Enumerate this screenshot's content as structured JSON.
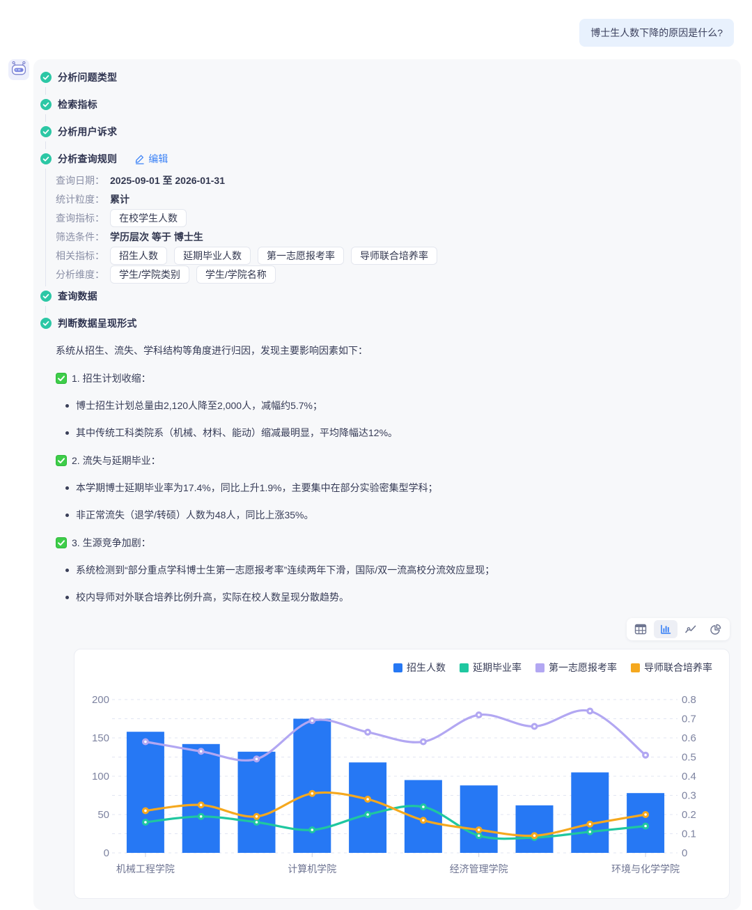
{
  "user_message": "博士生人数下降的原因是什么?",
  "avatar": {
    "icon": "robot-icon"
  },
  "steps": [
    {
      "label": "分析问题类型"
    },
    {
      "label": "检索指标"
    },
    {
      "label": "分析用户诉求"
    },
    {
      "label": "分析查询规则",
      "edit_label": "编辑"
    },
    {
      "label": "查询数据"
    },
    {
      "label": "判断数据呈现形式"
    }
  ],
  "query_rules": {
    "rows": [
      {
        "label": "查询日期：",
        "text": "2025-09-01 至 2026-01-31"
      },
      {
        "label": "统计粒度：",
        "text": "累计"
      },
      {
        "label": "查询指标：",
        "tags": [
          "在校学生人数"
        ]
      },
      {
        "label": "筛选条件：",
        "text": "学历层次 等于 博士生"
      },
      {
        "label": "相关指标：",
        "tags": [
          "招生人数",
          "延期毕业人数",
          "第一志愿报考率",
          "导师联合培养率"
        ]
      },
      {
        "label": "分析维度：",
        "tags": [
          "学生/学院类别",
          "学生/学院名称"
        ]
      }
    ]
  },
  "analysis": {
    "intro": "系统从招生、流失、学科结构等角度进行归因，发现主要影响因素如下：",
    "sections": [
      {
        "title": "1. 招生计划收缩：",
        "bullets": [
          "博士招生计划总量由2,120人降至2,000人，减幅约5.7%；",
          "其中传统工科类院系（机械、材料、能动）缩减最明显，平均降幅达12%。"
        ]
      },
      {
        "title": "2. 流失与延期毕业：",
        "bullets": [
          "本学期博士延期毕业率为17.4%，同比上升1.9%，主要集中在部分实验密集型学科；",
          "非正常流失（退学/转硕）人数为48人，同比上涨35%。"
        ]
      },
      {
        "title": "3. 生源竞争加剧：",
        "bullets": [
          "系统检测到“部分重点学科博士生第一志愿报考率”连续两年下滑，国际/双一流高校分流效应显现；",
          "校内导师对外联合培养比例升高，实际在校人数呈现分散趋势。"
        ]
      }
    ]
  },
  "toolbar": {
    "buttons": [
      {
        "icon": "table-icon",
        "active": false
      },
      {
        "icon": "bar-chart-icon",
        "active": true
      },
      {
        "icon": "line-chart-icon",
        "active": false
      },
      {
        "icon": "pie-chart-icon",
        "active": false
      }
    ]
  },
  "chart_data": {
    "type": "bar",
    "subtype": "combo bar + smooth lines, dual y-axis",
    "num_categories": 10,
    "x_tick_labels": [
      "机械工程学院",
      "计算机学院",
      "经济管理学院",
      "环境与化学学院"
    ],
    "x_tick_positions": [
      0,
      3,
      6,
      9
    ],
    "left_axis": {
      "min": 0,
      "max": 200,
      "ticks": [
        0,
        50,
        100,
        150,
        200
      ]
    },
    "right_axis": {
      "min": 0,
      "max": 0.8,
      "tick_step": 0.1
    },
    "legend_position": "top-right",
    "grid": "horizontal dashed",
    "series": [
      {
        "name": "招生人数",
        "type": "bar",
        "axis": "left",
        "color": "#2678f4",
        "values": [
          158,
          142,
          132,
          175,
          118,
          95,
          88,
          62,
          105,
          78
        ]
      },
      {
        "name": "延期毕业率",
        "type": "line",
        "axis": "right",
        "color": "#1fc7a0",
        "values": [
          0.16,
          0.19,
          0.16,
          0.12,
          0.2,
          0.24,
          0.09,
          0.08,
          0.11,
          0.14
        ]
      },
      {
        "name": "第一志愿报考率",
        "type": "line",
        "axis": "right",
        "color": "#b2a7f2",
        "values": [
          0.58,
          0.53,
          0.49,
          0.69,
          0.63,
          0.58,
          0.72,
          0.66,
          0.74,
          0.51
        ]
      },
      {
        "name": "导师联合培养率",
        "type": "line",
        "axis": "right",
        "color": "#f5a81e",
        "values": [
          0.22,
          0.25,
          0.19,
          0.31,
          0.28,
          0.17,
          0.12,
          0.09,
          0.15,
          0.2
        ]
      }
    ]
  },
  "colors": {
    "accent_blue": "#3b82f6",
    "bar_blue": "#2678f4",
    "teal": "#1fc7a0",
    "purple": "#b2a7f2",
    "orange": "#f5a81e",
    "check_green": "#3ecd49",
    "step_check_teal": "#2cc7a5",
    "user_bubble_bg": "#e8f1fd",
    "assistant_bg": "#f7f8fa",
    "grid_line": "#e1e5f2"
  }
}
